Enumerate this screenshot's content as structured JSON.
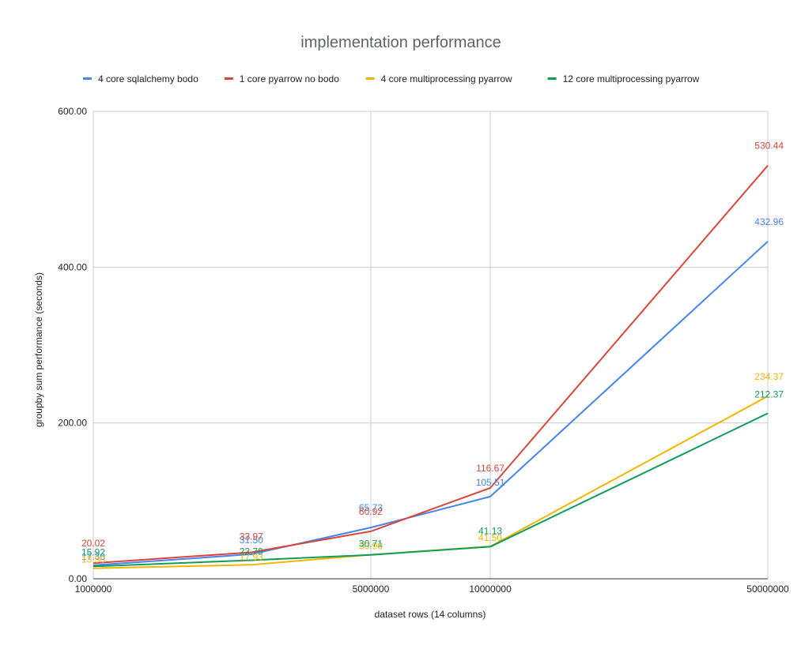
{
  "chart_data": {
    "type": "line",
    "title": "implementation performance",
    "xlabel": "dataset rows (14 columns)",
    "ylabel": "groupby sum performance (seconds)",
    "x_scale": "log",
    "x": [
      1000000,
      2500000,
      5000000,
      10000000,
      50000000
    ],
    "x_tick_labels": [
      "1000000",
      "5000000",
      "10000000",
      "50000000"
    ],
    "x_tick_values": [
      1000000,
      5000000,
      10000000,
      50000000
    ],
    "x_grid_values": [
      5000000,
      10000000
    ],
    "ylim": [
      0,
      600
    ],
    "y_ticks": [
      0,
      200,
      400,
      600
    ],
    "y_tick_labels": [
      "0.00",
      "200.00",
      "400.00",
      "600.00"
    ],
    "grid": true,
    "legend_position": "top",
    "series": [
      {
        "name": "4 core sqlalchemy bodo",
        "color": "#4285f4",
        "values": [
          17.3,
          31.5,
          65.73,
          105.51,
          432.96
        ],
        "labels": [
          "17.30",
          "31.50",
          "65.73",
          "105.51",
          "432.96"
        ]
      },
      {
        "name": "1 core pyarrow no bodo",
        "color": "#db4437",
        "values": [
          20.02,
          33.97,
          60.92,
          116.67,
          530.44
        ],
        "labels": [
          "20.02",
          "33.97",
          "60.92",
          "116.67",
          "530.44"
        ]
      },
      {
        "name": "4 core multiprocessing pyarrow",
        "color": "#f4b400",
        "values": [
          13.5,
          17.93,
          30.9,
          41.5,
          234.37
        ],
        "labels": [
          "13.50",
          "17.93",
          "30.90",
          "41.50",
          "234.37"
        ]
      },
      {
        "name": "12 core multiprocessing pyarrow",
        "color": "#0f9d58",
        "values": [
          15.92,
          23.79,
          30.71,
          41.13,
          212.37
        ],
        "labels": [
          "15.92",
          "23.79",
          "30.71",
          "41.13",
          "212.37"
        ]
      }
    ]
  }
}
